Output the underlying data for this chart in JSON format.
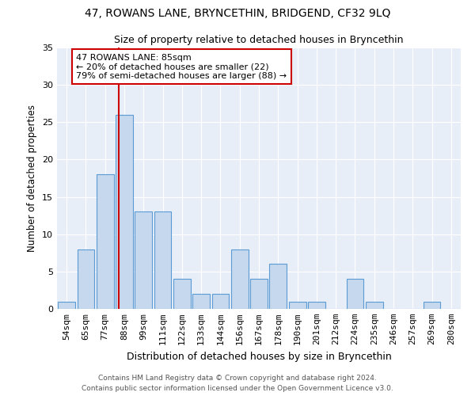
{
  "title": "47, ROWANS LANE, BRYNCETHIN, BRIDGEND, CF32 9LQ",
  "subtitle": "Size of property relative to detached houses in Bryncethin",
  "xlabel": "Distribution of detached houses by size in Bryncethin",
  "ylabel": "Number of detached properties",
  "bin_labels": [
    "54sqm",
    "65sqm",
    "77sqm",
    "88sqm",
    "99sqm",
    "111sqm",
    "122sqm",
    "133sqm",
    "144sqm",
    "156sqm",
    "167sqm",
    "178sqm",
    "190sqm",
    "201sqm",
    "212sqm",
    "224sqm",
    "235sqm",
    "246sqm",
    "257sqm",
    "269sqm",
    "280sqm"
  ],
  "bar_heights": [
    1,
    8,
    18,
    26,
    13,
    13,
    4,
    2,
    2,
    8,
    4,
    6,
    1,
    1,
    0,
    4,
    1,
    0,
    0,
    1,
    0
  ],
  "bar_color": "#c5d8ed",
  "bar_edge_color": "#5b9bd5",
  "vline_color": "#cc0000",
  "annotation_text": "47 ROWANS LANE: 85sqm\n← 20% of detached houses are smaller (22)\n79% of semi-detached houses are larger (88) →",
  "annotation_box_color": "#ffffff",
  "annotation_box_edge": "#cc0000",
  "ylim": [
    0,
    35
  ],
  "yticks": [
    0,
    5,
    10,
    15,
    20,
    25,
    30,
    35
  ],
  "footer1": "Contains HM Land Registry data © Crown copyright and database right 2024.",
  "footer2": "Contains public sector information licensed under the Open Government Licence v3.0.",
  "bg_color": "#e8eef8",
  "fig_bg_color": "#ffffff",
  "title_fontsize": 10,
  "subtitle_fontsize": 9,
  "ylabel_fontsize": 8.5,
  "xlabel_fontsize": 9,
  "tick_fontsize": 8,
  "footer_fontsize": 6.5,
  "annot_fontsize": 8
}
